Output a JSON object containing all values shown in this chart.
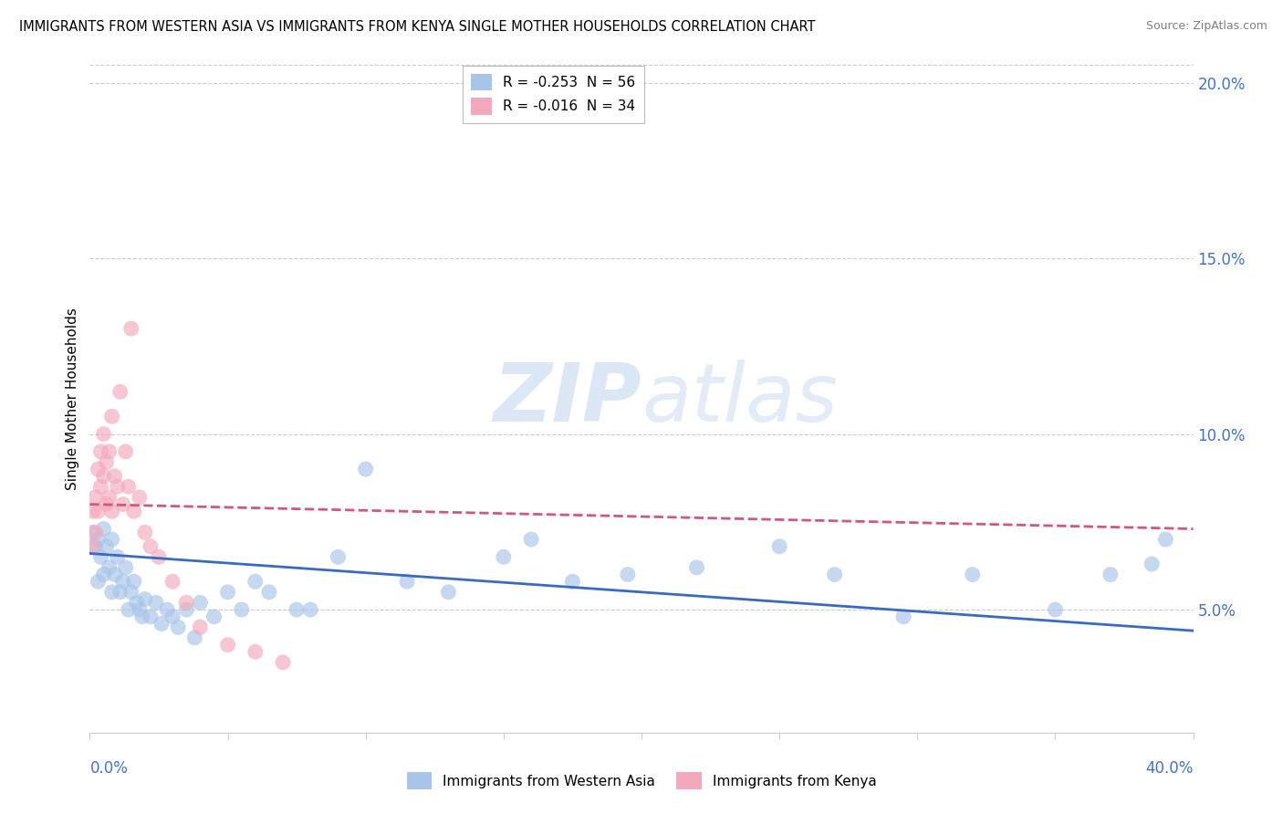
{
  "title": "IMMIGRANTS FROM WESTERN ASIA VS IMMIGRANTS FROM KENYA SINGLE MOTHER HOUSEHOLDS CORRELATION CHART",
  "source": "Source: ZipAtlas.com",
  "ylabel": "Single Mother Households",
  "watermark": "ZIPatlas",
  "legend_blue_R": "-0.253",
  "legend_blue_N": "56",
  "legend_blue_label": "Immigrants from Western Asia",
  "legend_pink_R": "-0.016",
  "legend_pink_N": "34",
  "legend_pink_label": "Immigrants from Kenya",
  "blue_color": "#a8c4e8",
  "pink_color": "#f4a8bc",
  "trendline_blue": "#3a6abf",
  "trendline_pink": "#d05878",
  "axis_color": "#4472c4",
  "xlim": [
    0.0,
    0.4
  ],
  "ylim": [
    0.015,
    0.205
  ],
  "yticks": [
    0.05,
    0.1,
    0.15,
    0.2
  ],
  "ytick_labels": [
    "5.0%",
    "10.0%",
    "15.0%",
    "20.0%"
  ],
  "xtick_positions": [
    0.0,
    0.05,
    0.1,
    0.15,
    0.2,
    0.25,
    0.3,
    0.35,
    0.4
  ],
  "blue_x": [
    0.001,
    0.002,
    0.003,
    0.003,
    0.004,
    0.005,
    0.005,
    0.006,
    0.007,
    0.008,
    0.008,
    0.009,
    0.01,
    0.011,
    0.012,
    0.013,
    0.014,
    0.015,
    0.016,
    0.017,
    0.018,
    0.019,
    0.02,
    0.022,
    0.024,
    0.026,
    0.028,
    0.03,
    0.032,
    0.035,
    0.038,
    0.04,
    0.045,
    0.05,
    0.055,
    0.06,
    0.065,
    0.075,
    0.08,
    0.09,
    0.1,
    0.115,
    0.13,
    0.15,
    0.16,
    0.175,
    0.195,
    0.22,
    0.25,
    0.27,
    0.295,
    0.32,
    0.35,
    0.37,
    0.385,
    0.39
  ],
  "blue_y": [
    0.072,
    0.068,
    0.07,
    0.058,
    0.065,
    0.073,
    0.06,
    0.068,
    0.062,
    0.07,
    0.055,
    0.06,
    0.065,
    0.055,
    0.058,
    0.062,
    0.05,
    0.055,
    0.058,
    0.052,
    0.05,
    0.048,
    0.053,
    0.048,
    0.052,
    0.046,
    0.05,
    0.048,
    0.045,
    0.05,
    0.042,
    0.052,
    0.048,
    0.055,
    0.05,
    0.058,
    0.055,
    0.05,
    0.05,
    0.065,
    0.09,
    0.058,
    0.055,
    0.065,
    0.07,
    0.058,
    0.06,
    0.062,
    0.068,
    0.06,
    0.048,
    0.06,
    0.05,
    0.06,
    0.063,
    0.07
  ],
  "pink_x": [
    0.001,
    0.001,
    0.002,
    0.002,
    0.003,
    0.003,
    0.004,
    0.004,
    0.005,
    0.005,
    0.006,
    0.006,
    0.007,
    0.007,
    0.008,
    0.008,
    0.009,
    0.01,
    0.011,
    0.012,
    0.013,
    0.014,
    0.015,
    0.016,
    0.018,
    0.02,
    0.022,
    0.025,
    0.03,
    0.035,
    0.04,
    0.05,
    0.06,
    0.07
  ],
  "pink_y": [
    0.078,
    0.068,
    0.082,
    0.072,
    0.09,
    0.078,
    0.095,
    0.085,
    0.1,
    0.088,
    0.092,
    0.08,
    0.095,
    0.082,
    0.105,
    0.078,
    0.088,
    0.085,
    0.112,
    0.08,
    0.095,
    0.085,
    0.13,
    0.078,
    0.082,
    0.072,
    0.068,
    0.065,
    0.058,
    0.052,
    0.045,
    0.04,
    0.038,
    0.035
  ],
  "blue_trendline_x": [
    0.0,
    0.4
  ],
  "blue_trendline_y": [
    0.066,
    0.044
  ],
  "pink_trendline_x": [
    0.0,
    0.4
  ],
  "pink_trendline_y": [
    0.08,
    0.073
  ]
}
